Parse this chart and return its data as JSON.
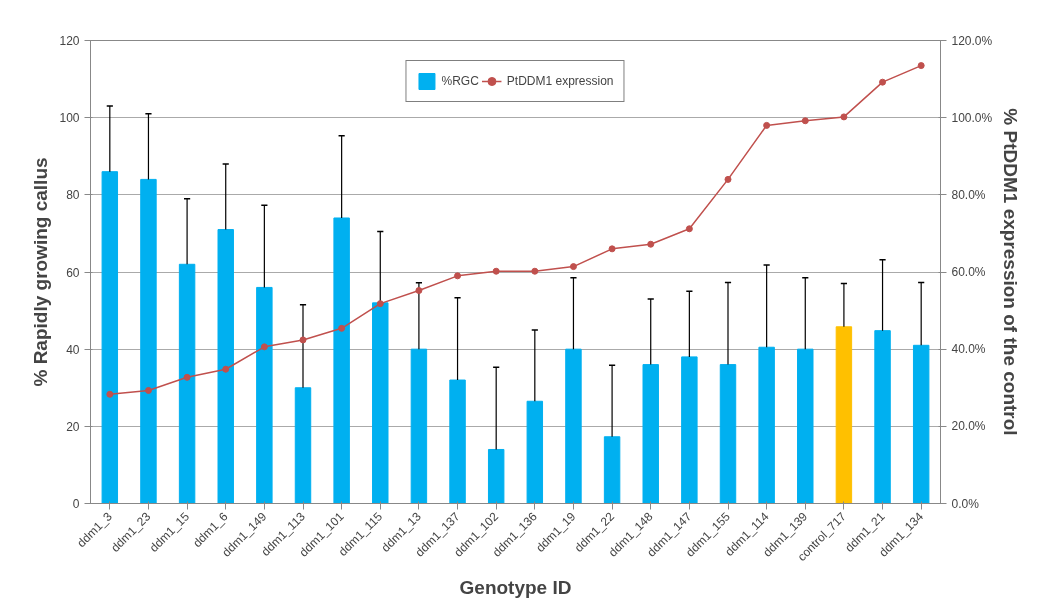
{
  "chart_data": {
    "type": "bar",
    "xlabel": "Genotype ID",
    "ylabel": "% Rapidly growing callus",
    "y2label": "% PtDDM1 expression of the control",
    "categories": [
      "ddm1_3",
      "ddm1_23",
      "ddm1_15",
      "ddm1_6",
      "ddm1_149",
      "ddm1_113",
      "ddm1_101",
      "ddm1_115",
      "ddm1_13",
      "ddm1_137",
      "ddm1_102",
      "ddm1_136",
      "ddm1_19",
      "ddm1_22",
      "ddm1_148",
      "ddm1_147",
      "ddm1_155",
      "ddm1_114",
      "ddm1_139",
      "control_717",
      "ddm1_21",
      "ddm1_134"
    ],
    "series": [
      {
        "name": "%RGC",
        "colors": [
          "#00b0f0",
          "#00b0f0",
          "#00b0f0",
          "#00b0f0",
          "#00b0f0",
          "#00b0f0",
          "#00b0f0",
          "#00b0f0",
          "#00b0f0",
          "#00b0f0",
          "#00b0f0",
          "#00b0f0",
          "#00b0f0",
          "#00b0f0",
          "#00b0f0",
          "#00b0f0",
          "#00b0f0",
          "#00b0f0",
          "#00b0f0",
          "#ffc000",
          "#00b0f0",
          "#00b0f0"
        ],
        "values": [
          86,
          84,
          62,
          71,
          56,
          30,
          74,
          52,
          40,
          32,
          14,
          26.5,
          40,
          17.3,
          36,
          38,
          36,
          40.5,
          40,
          45.8,
          44.8,
          41
        ],
        "errors": [
          [
            86,
            103
          ],
          [
            84,
            101
          ],
          [
            62,
            79
          ],
          [
            71,
            88
          ],
          [
            56,
            77.3
          ],
          [
            30,
            51.5
          ],
          [
            74,
            95.3
          ],
          [
            52,
            70.5
          ],
          [
            40,
            57.2
          ],
          [
            32,
            53.3
          ],
          [
            14,
            35.3
          ],
          [
            26.5,
            45
          ],
          [
            40,
            58.5
          ],
          [
            17.3,
            35.8
          ],
          [
            36,
            53
          ],
          [
            38,
            55
          ],
          [
            36,
            57.3
          ],
          [
            40.5,
            61.8
          ],
          [
            40,
            58.5
          ],
          [
            45.8,
            57
          ],
          [
            44.8,
            63.2
          ],
          [
            41,
            57.3
          ]
        ]
      },
      {
        "name": "PtDDM1 expression",
        "type": "line",
        "axis": "y2",
        "color": "#c0504d",
        "marker": "circle",
        "values": [
          0.283,
          0.293,
          0.327,
          0.348,
          0.406,
          0.424,
          0.454,
          0.518,
          0.552,
          0.59,
          0.602,
          0.602,
          0.614,
          0.66,
          0.672,
          0.712,
          0.84,
          0.98,
          0.992,
          1.002,
          1.092,
          1.135
        ]
      }
    ],
    "ylim": [
      0,
      120
    ],
    "yticks": [
      0,
      20,
      40,
      60,
      80,
      100,
      120
    ],
    "y2lim": [
      0,
      1.2
    ],
    "y2ticks": [
      {
        "value": 0,
        "label": "0.0%"
      },
      {
        "value": 0.2,
        "label": "20.0%"
      },
      {
        "value": 0.4,
        "label": "40.0%"
      },
      {
        "value": 0.6,
        "label": "60.0%"
      },
      {
        "value": 0.8,
        "label": "80.0%"
      },
      {
        "value": 1.0,
        "label": "100.0%"
      },
      {
        "value": 1.2,
        "label": "120.0%"
      }
    ],
    "grid": "y",
    "legend": "top"
  }
}
